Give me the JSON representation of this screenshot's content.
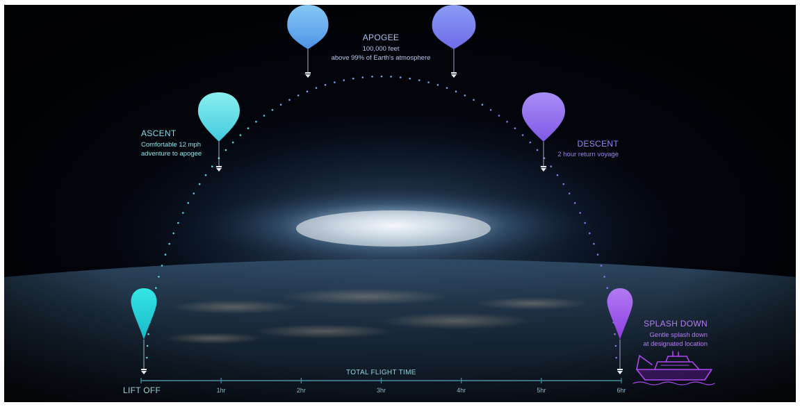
{
  "stages": {
    "ascent": {
      "title": "ASCENT",
      "line1": "Comfortable 12 mph",
      "line2": "adventure to apogee"
    },
    "apogee": {
      "title": "APOGEE",
      "line1": "100,000 feet",
      "line2": "above 99% of Earth's atmosphere"
    },
    "descent": {
      "title": "DESCENT",
      "line1": "2 hour return voyage"
    },
    "splashdown": {
      "title": "SPLASH DOWN",
      "line1": "Gentle splash down",
      "line2": "at designated location"
    }
  },
  "timeline": {
    "title": "TOTAL FLIGHT TIME",
    "start_label": "LIFT OFF",
    "ticks": [
      "1hr",
      "2hr",
      "3hr",
      "4hr",
      "5hr",
      "6hr"
    ]
  },
  "icons": {
    "balloon": "balloon-icon",
    "capsule": "capsule-icon",
    "ship": "ship-icon"
  },
  "colors": {
    "ascent": "#7ee8ee",
    "apogee_left": "#6fb8f2",
    "apogee_right": "#7f8ef0",
    "descent": "#9a7cf0",
    "splash": "#a458ec",
    "liftoff_balloon": "#27d9dc",
    "ship": "#b047f2",
    "axis": "#4b8fa3"
  }
}
